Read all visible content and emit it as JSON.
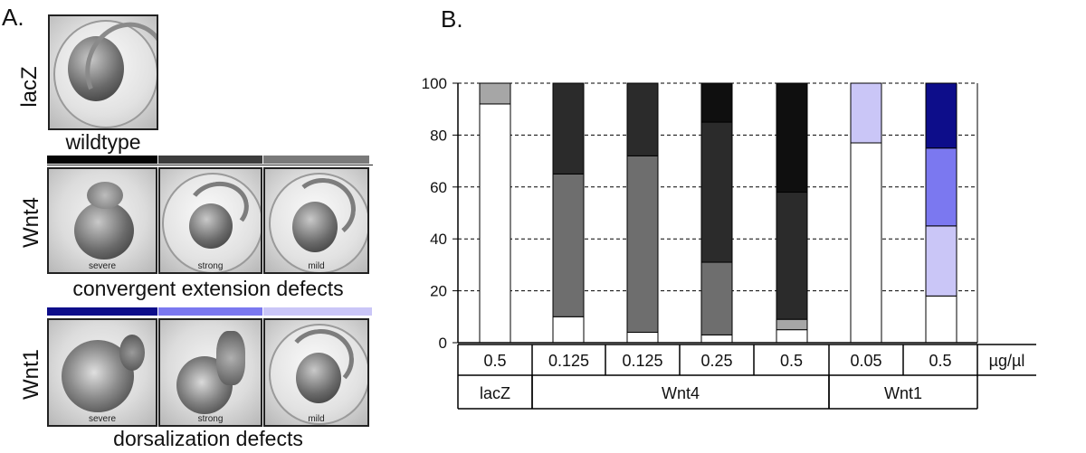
{
  "panel_a": {
    "label": "A.",
    "lacz": {
      "row_label": "lacZ",
      "caption": "wildtype"
    },
    "wnt4": {
      "row_label": "Wnt4",
      "caption": "convergent extension defects",
      "images": [
        "severe",
        "strong",
        "mild"
      ],
      "band_colors": [
        "#050505",
        "#3c3c3c",
        "#7a7a7a"
      ]
    },
    "wnt1": {
      "row_label": "Wnt1",
      "caption": "dorsalization defects",
      "images": [
        "severe",
        "strong",
        "mild"
      ],
      "band_colors": [
        "#0d0d8a",
        "#7b78f0",
        "#cac6f7"
      ]
    }
  },
  "panel_b": {
    "label": "B."
  },
  "chart_data": {
    "type": "bar",
    "stacked": true,
    "ylim": [
      0,
      100
    ],
    "yticks": [
      0,
      20,
      40,
      60,
      80,
      100
    ],
    "grid": "dashed horizontal",
    "unit_label": "µg/µl",
    "categories": [
      "0.5",
      "0.125",
      "0.125",
      "0.25",
      "0.5",
      "0.05",
      "0.5"
    ],
    "groups": [
      {
        "name": "lacZ",
        "span": [
          0,
          0
        ]
      },
      {
        "name": "Wnt4",
        "span": [
          1,
          4
        ]
      },
      {
        "name": "Wnt1",
        "span": [
          5,
          6
        ]
      }
    ],
    "bars": [
      {
        "segments": [
          {
            "value": 92,
            "color": "#ffffff"
          },
          {
            "value": 8,
            "color": "#a6a6a6"
          }
        ]
      },
      {
        "segments": [
          {
            "value": 10,
            "color": "#ffffff"
          },
          {
            "value": 55,
            "color": "#6e6e6e"
          },
          {
            "value": 35,
            "color": "#2b2b2b"
          }
        ]
      },
      {
        "segments": [
          {
            "value": 4,
            "color": "#ffffff"
          },
          {
            "value": 68,
            "color": "#6e6e6e"
          },
          {
            "value": 28,
            "color": "#2b2b2b"
          }
        ]
      },
      {
        "segments": [
          {
            "value": 3,
            "color": "#ffffff"
          },
          {
            "value": 28,
            "color": "#6e6e6e"
          },
          {
            "value": 54,
            "color": "#2b2b2b"
          },
          {
            "value": 15,
            "color": "#0f0f0f"
          }
        ]
      },
      {
        "segments": [
          {
            "value": 5,
            "color": "#ffffff"
          },
          {
            "value": 4,
            "color": "#a6a6a6"
          },
          {
            "value": 49,
            "color": "#2b2b2b"
          },
          {
            "value": 42,
            "color": "#0f0f0f"
          }
        ]
      },
      {
        "segments": [
          {
            "value": 77,
            "color": "#ffffff"
          },
          {
            "value": 23,
            "color": "#cac6f7"
          }
        ]
      },
      {
        "segments": [
          {
            "value": 18,
            "color": "#ffffff"
          },
          {
            "value": 27,
            "color": "#cac6f7"
          },
          {
            "value": 30,
            "color": "#7b78f0"
          },
          {
            "value": 25,
            "color": "#0d0d8a"
          }
        ]
      }
    ]
  }
}
